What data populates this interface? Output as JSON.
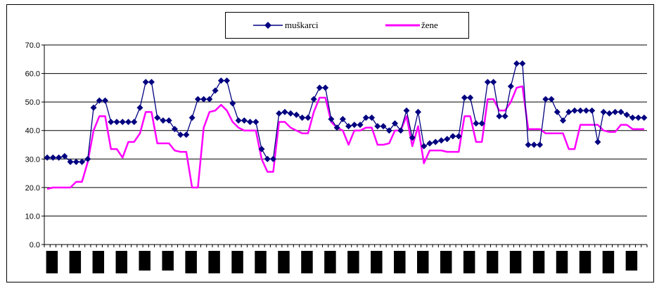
{
  "chart_data": {
    "type": "line",
    "ylim": [
      0,
      70
    ],
    "yticks": [
      "0.0",
      "10.0",
      "20.0",
      "30.0",
      "40.0",
      "50.0",
      "60.0",
      "70.0"
    ],
    "grid": true,
    "legend_position": "top",
    "series": [
      {
        "name": "muškarci",
        "color": "#000080",
        "marker": "diamond",
        "values": [
          30.5,
          30.5,
          30.5,
          31.0,
          29.0,
          29.0,
          29.0,
          30.0,
          48.0,
          50.5,
          50.5,
          43.0,
          43.0,
          43.0,
          43.0,
          43.0,
          48.0,
          57.0,
          57.0,
          44.5,
          43.5,
          43.5,
          40.5,
          38.5,
          38.5,
          44.5,
          51.0,
          51.0,
          51.0,
          54.0,
          57.5,
          57.5,
          49.5,
          43.5,
          43.5,
          43.0,
          43.0,
          33.5,
          30.0,
          30.0,
          46.0,
          46.5,
          46.0,
          45.5,
          44.5,
          44.5,
          51.0,
          55.0,
          55.0,
          44.0,
          41.0,
          44.0,
          41.5,
          42.0,
          42.0,
          44.5,
          44.5,
          41.5,
          41.5,
          40.0,
          42.5,
          40.0,
          47.0,
          37.5,
          46.5,
          34.5,
          35.5,
          36.0,
          36.5,
          37.0,
          38.0,
          38.0,
          51.5,
          51.5,
          42.5,
          42.5,
          57.0,
          57.0,
          45.0,
          45.0,
          55.5,
          63.5,
          63.5,
          35.0,
          35.0,
          35.0,
          51.0,
          51.0,
          46.5,
          43.5,
          46.5,
          47.0,
          47.0,
          47.0,
          47.0,
          36.0,
          46.5,
          46.0,
          46.5,
          46.5,
          45.5,
          44.5,
          44.5,
          44.5
        ]
      },
      {
        "name": "žene",
        "color": "#FF00FF",
        "marker": "none",
        "values": [
          19.5,
          20.0,
          20.0,
          20.0,
          20.0,
          22.0,
          22.0,
          29.0,
          40.0,
          45.0,
          45.0,
          33.5,
          33.5,
          30.5,
          36.0,
          36.0,
          39.0,
          46.5,
          46.5,
          35.5,
          35.5,
          35.5,
          33.0,
          32.5,
          32.5,
          20.0,
          20.0,
          41.0,
          46.5,
          47.0,
          49.0,
          47.0,
          43.0,
          41.0,
          40.0,
          40.0,
          40.0,
          30.0,
          25.5,
          25.5,
          43.0,
          43.0,
          41.0,
          40.0,
          39.0,
          39.0,
          46.5,
          51.5,
          51.5,
          43.0,
          41.0,
          40.0,
          35.0,
          40.0,
          40.0,
          41.0,
          41.0,
          35.0,
          35.0,
          35.5,
          40.0,
          40.0,
          45.0,
          34.5,
          41.5,
          28.5,
          33.0,
          33.0,
          33.0,
          32.5,
          32.5,
          32.5,
          45.0,
          45.0,
          36.0,
          36.0,
          51.0,
          51.0,
          47.0,
          47.0,
          50.0,
          55.0,
          55.5,
          40.5,
          40.5,
          40.5,
          39.0,
          39.0,
          39.0,
          39.0,
          33.5,
          33.5,
          42.0,
          42.0,
          42.0,
          42.0,
          40.0,
          39.5,
          39.5,
          42.0,
          42.0,
          40.5,
          40.5,
          40.5
        ]
      }
    ]
  }
}
